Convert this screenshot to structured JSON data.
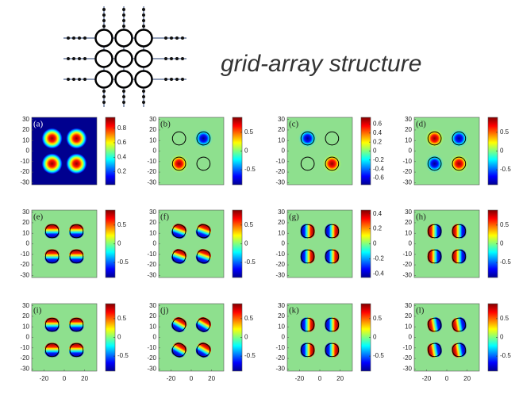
{
  "title": "grid-array structure",
  "xlim": [
    -32,
    32
  ],
  "ylim": [
    -32,
    32
  ],
  "xticks": [
    -20,
    0,
    20
  ],
  "yticks": [
    30,
    20,
    10,
    0,
    -10,
    -20,
    -30
  ],
  "panels": [
    {
      "label": "(a)",
      "clim": [
        0.02,
        0.95
      ],
      "cticks": [
        0.8,
        0.6,
        0.4,
        0.2
      ]
    },
    {
      "label": "(b)",
      "clim": [
        -0.9,
        0.9
      ],
      "cticks": [
        0.5,
        0,
        -0.5
      ]
    },
    {
      "label": "(c)",
      "clim": [
        -0.75,
        0.75
      ],
      "cticks": [
        0.6,
        0.4,
        0.2,
        0,
        -0.2,
        -0.4,
        -0.6
      ]
    },
    {
      "label": "(d)",
      "clim": [
        -0.9,
        0.9
      ],
      "cticks": [
        0.5,
        0,
        -0.5
      ]
    },
    {
      "label": "(e)",
      "clim": [
        -0.9,
        0.9
      ],
      "cticks": [
        0.5,
        0,
        -0.5
      ]
    },
    {
      "label": "(f)",
      "clim": [
        -0.9,
        0.9
      ],
      "cticks": [
        0.5,
        0,
        -0.5
      ]
    },
    {
      "label": "(g)",
      "clim": [
        -0.45,
        0.45
      ],
      "cticks": [
        0.4,
        0.2,
        0,
        -0.2,
        -0.4
      ]
    },
    {
      "label": "(h)",
      "clim": [
        -0.9,
        0.9
      ],
      "cticks": [
        0.5,
        0,
        -0.5
      ]
    },
    {
      "label": "(i)",
      "clim": [
        -0.9,
        0.9
      ],
      "cticks": [
        0.5,
        0,
        -0.5
      ]
    },
    {
      "label": "(j)",
      "clim": [
        -0.9,
        0.9
      ],
      "cticks": [
        0.5,
        0,
        -0.5
      ]
    },
    {
      "label": "(k)",
      "clim": [
        -0.9,
        0.9
      ],
      "cticks": [
        0.5,
        0,
        -0.5
      ]
    },
    {
      "label": "(l)",
      "clim": [
        -0.9,
        0.9
      ],
      "cticks": [
        0.5,
        0,
        -0.5
      ]
    }
  ]
}
